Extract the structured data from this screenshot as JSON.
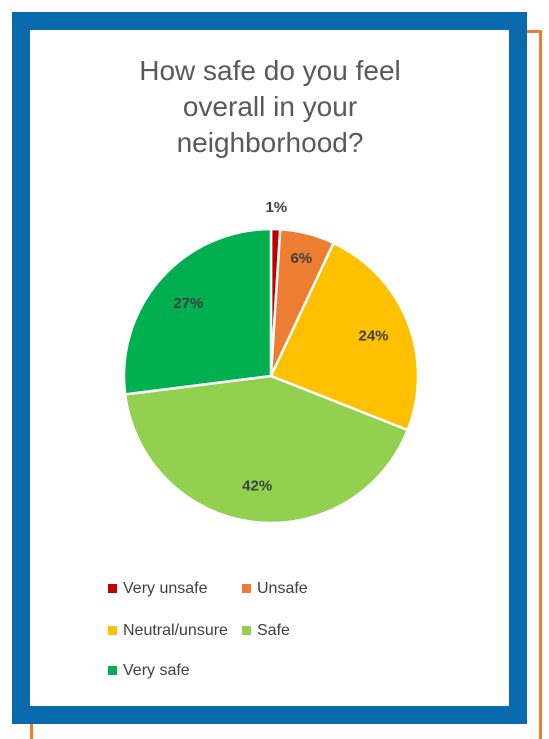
{
  "chart_data": {
    "type": "pie",
    "title_lines": [
      "How safe do you feel",
      "overall in your",
      "neighborhood?"
    ],
    "categories": [
      "Very unsafe",
      "Unsafe",
      "Neutral/unsure",
      "Safe",
      "Very safe"
    ],
    "values": [
      1,
      6,
      24,
      42,
      27
    ],
    "data_labels": [
      "1%",
      "6%",
      "24%",
      "42%",
      "27%"
    ],
    "colors": [
      "#C00000",
      "#ED7D31",
      "#FFC000",
      "#92D050",
      "#00B050"
    ],
    "legend_position": "bottom"
  },
  "colors": {
    "frame_blue": "#0A6AAE",
    "frame_orange": "#ED7D31"
  }
}
